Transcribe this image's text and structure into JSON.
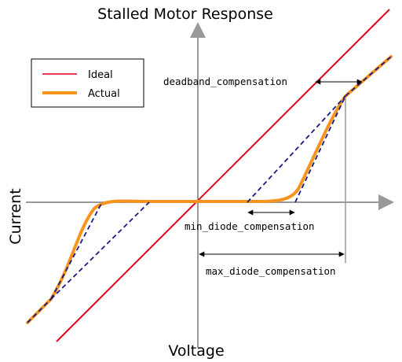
{
  "title": "Stalled Motor Response",
  "x_axis_label": "Voltage",
  "y_axis_label": "Current",
  "legend": {
    "items": [
      {
        "label": "Ideal",
        "color": "#e0001b"
      },
      {
        "label": "Actual",
        "color": "#f7941d"
      }
    ]
  },
  "annotations": {
    "deadband": "deadband_compensation",
    "min_diode": "min_diode_compensation",
    "max_diode": "max_diode_compensation"
  },
  "colors": {
    "axis": "#999999",
    "ideal": "#e0001b",
    "actual": "#f7941d",
    "guide": "#1a1a80",
    "arrow": "#000000"
  }
}
